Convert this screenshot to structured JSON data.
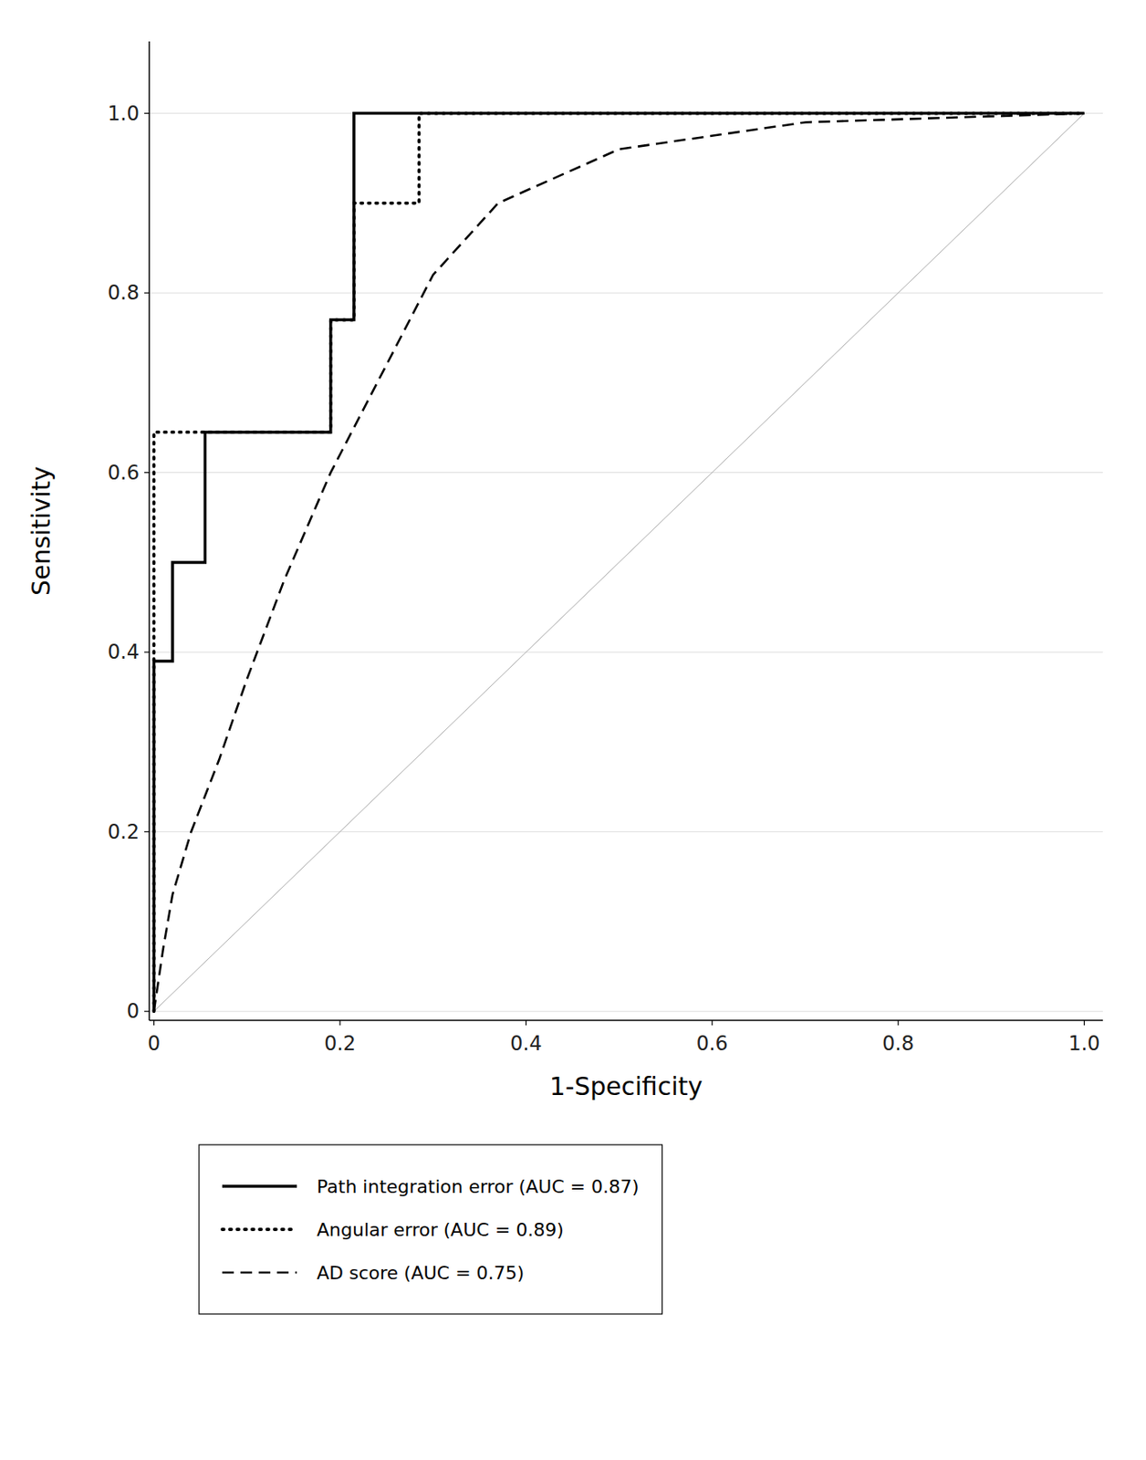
{
  "chart_data": {
    "type": "line",
    "x_label": "1-Specificity",
    "y_label": "Sensitivity",
    "xlim": [
      -0.005,
      1.02
    ],
    "ylim": [
      -0.01,
      1.08
    ],
    "xticks": [
      0,
      0.2,
      0.4,
      0.6,
      0.8,
      {
        "value": 1.0,
        "label": "1.0"
      }
    ],
    "yticks": [
      0,
      0.2,
      0.4,
      0.6,
      0.8,
      {
        "value": 1.0,
        "label": "1.0"
      }
    ],
    "grid": "y",
    "legend": "bottom",
    "series": [
      {
        "name": "Path integration error (AUC = 0.87)",
        "color": "#000000",
        "line_style": "solid",
        "x": [
          0,
          0,
          0.02,
          0.02,
          0.055,
          0.055,
          0.19,
          0.19,
          0.215,
          0.215,
          1.0
        ],
        "values": [
          0,
          0.39,
          0.39,
          0.5,
          0.5,
          0.645,
          0.645,
          0.77,
          0.77,
          1.0,
          1.0
        ]
      },
      {
        "name": "Angular error (AUC = 0.89)",
        "color": "#000000",
        "line_style": "dotted",
        "x": [
          0,
          0,
          0.055,
          0.055,
          0.19,
          0.19,
          0.215,
          0.215,
          0.285,
          0.285,
          1.0
        ],
        "values": [
          0,
          0.645,
          0.645,
          0.645,
          0.645,
          0.77,
          0.77,
          0.9,
          0.9,
          1.0,
          1.0
        ]
      },
      {
        "name": "AD score (AUC = 0.75)",
        "color": "#000000",
        "line_style": "dashed",
        "x": [
          0,
          0.01,
          0.02,
          0.04,
          0.07,
          0.1,
          0.14,
          0.19,
          0.25,
          0.3,
          0.37,
          0.5,
          0.7,
          1.0
        ],
        "values": [
          0,
          0.07,
          0.13,
          0.2,
          0.28,
          0.37,
          0.48,
          0.6,
          0.72,
          0.82,
          0.9,
          0.96,
          0.99,
          1.0
        ]
      },
      {
        "color": "#aaaaaa",
        "line_style": "thin",
        "x": [
          0,
          1.0
        ],
        "values": [
          0,
          1.0
        ]
      }
    ]
  }
}
